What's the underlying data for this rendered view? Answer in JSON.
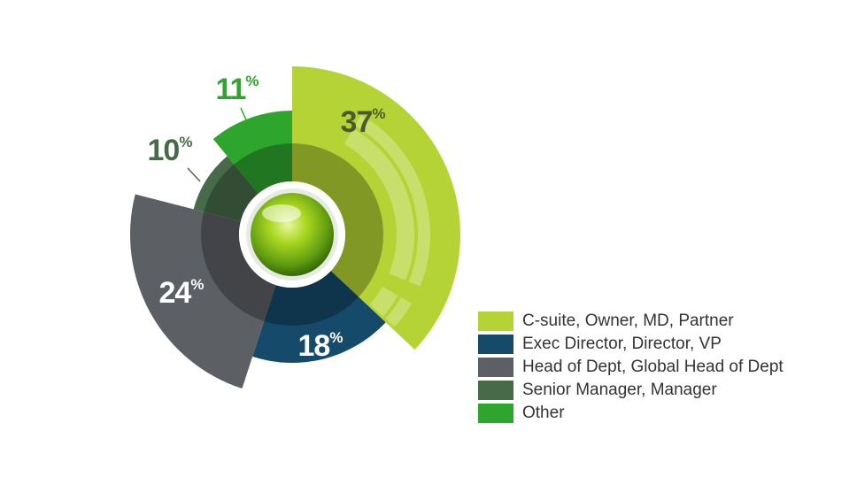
{
  "chart_data": {
    "type": "pie",
    "title": "",
    "series": [
      {
        "label": "C-suite, Owner, MD, Partner",
        "value": 37,
        "display": "37",
        "color": "#b5d334",
        "label_color": "#4a5a2e"
      },
      {
        "label": "Exec Director, Director, VP",
        "value": 18,
        "display": "18",
        "color": "#164a6b",
        "label_color": "#ffffff"
      },
      {
        "label": "Head of Dept, Global Head of Dept",
        "value": 24,
        "display": "24",
        "color": "#5c5f63",
        "label_color": "#ffffff"
      },
      {
        "label": "Senior Manager, Manager",
        "value": 10,
        "display": "10",
        "color": "#476b49",
        "label_color": "#476b49"
      },
      {
        "label": "Other",
        "value": 11,
        "display": "11",
        "color": "#2ea62e",
        "label_color": "#2ea62e"
      }
    ],
    "percent_symbol": "%",
    "legend_position": "bottom-right"
  }
}
